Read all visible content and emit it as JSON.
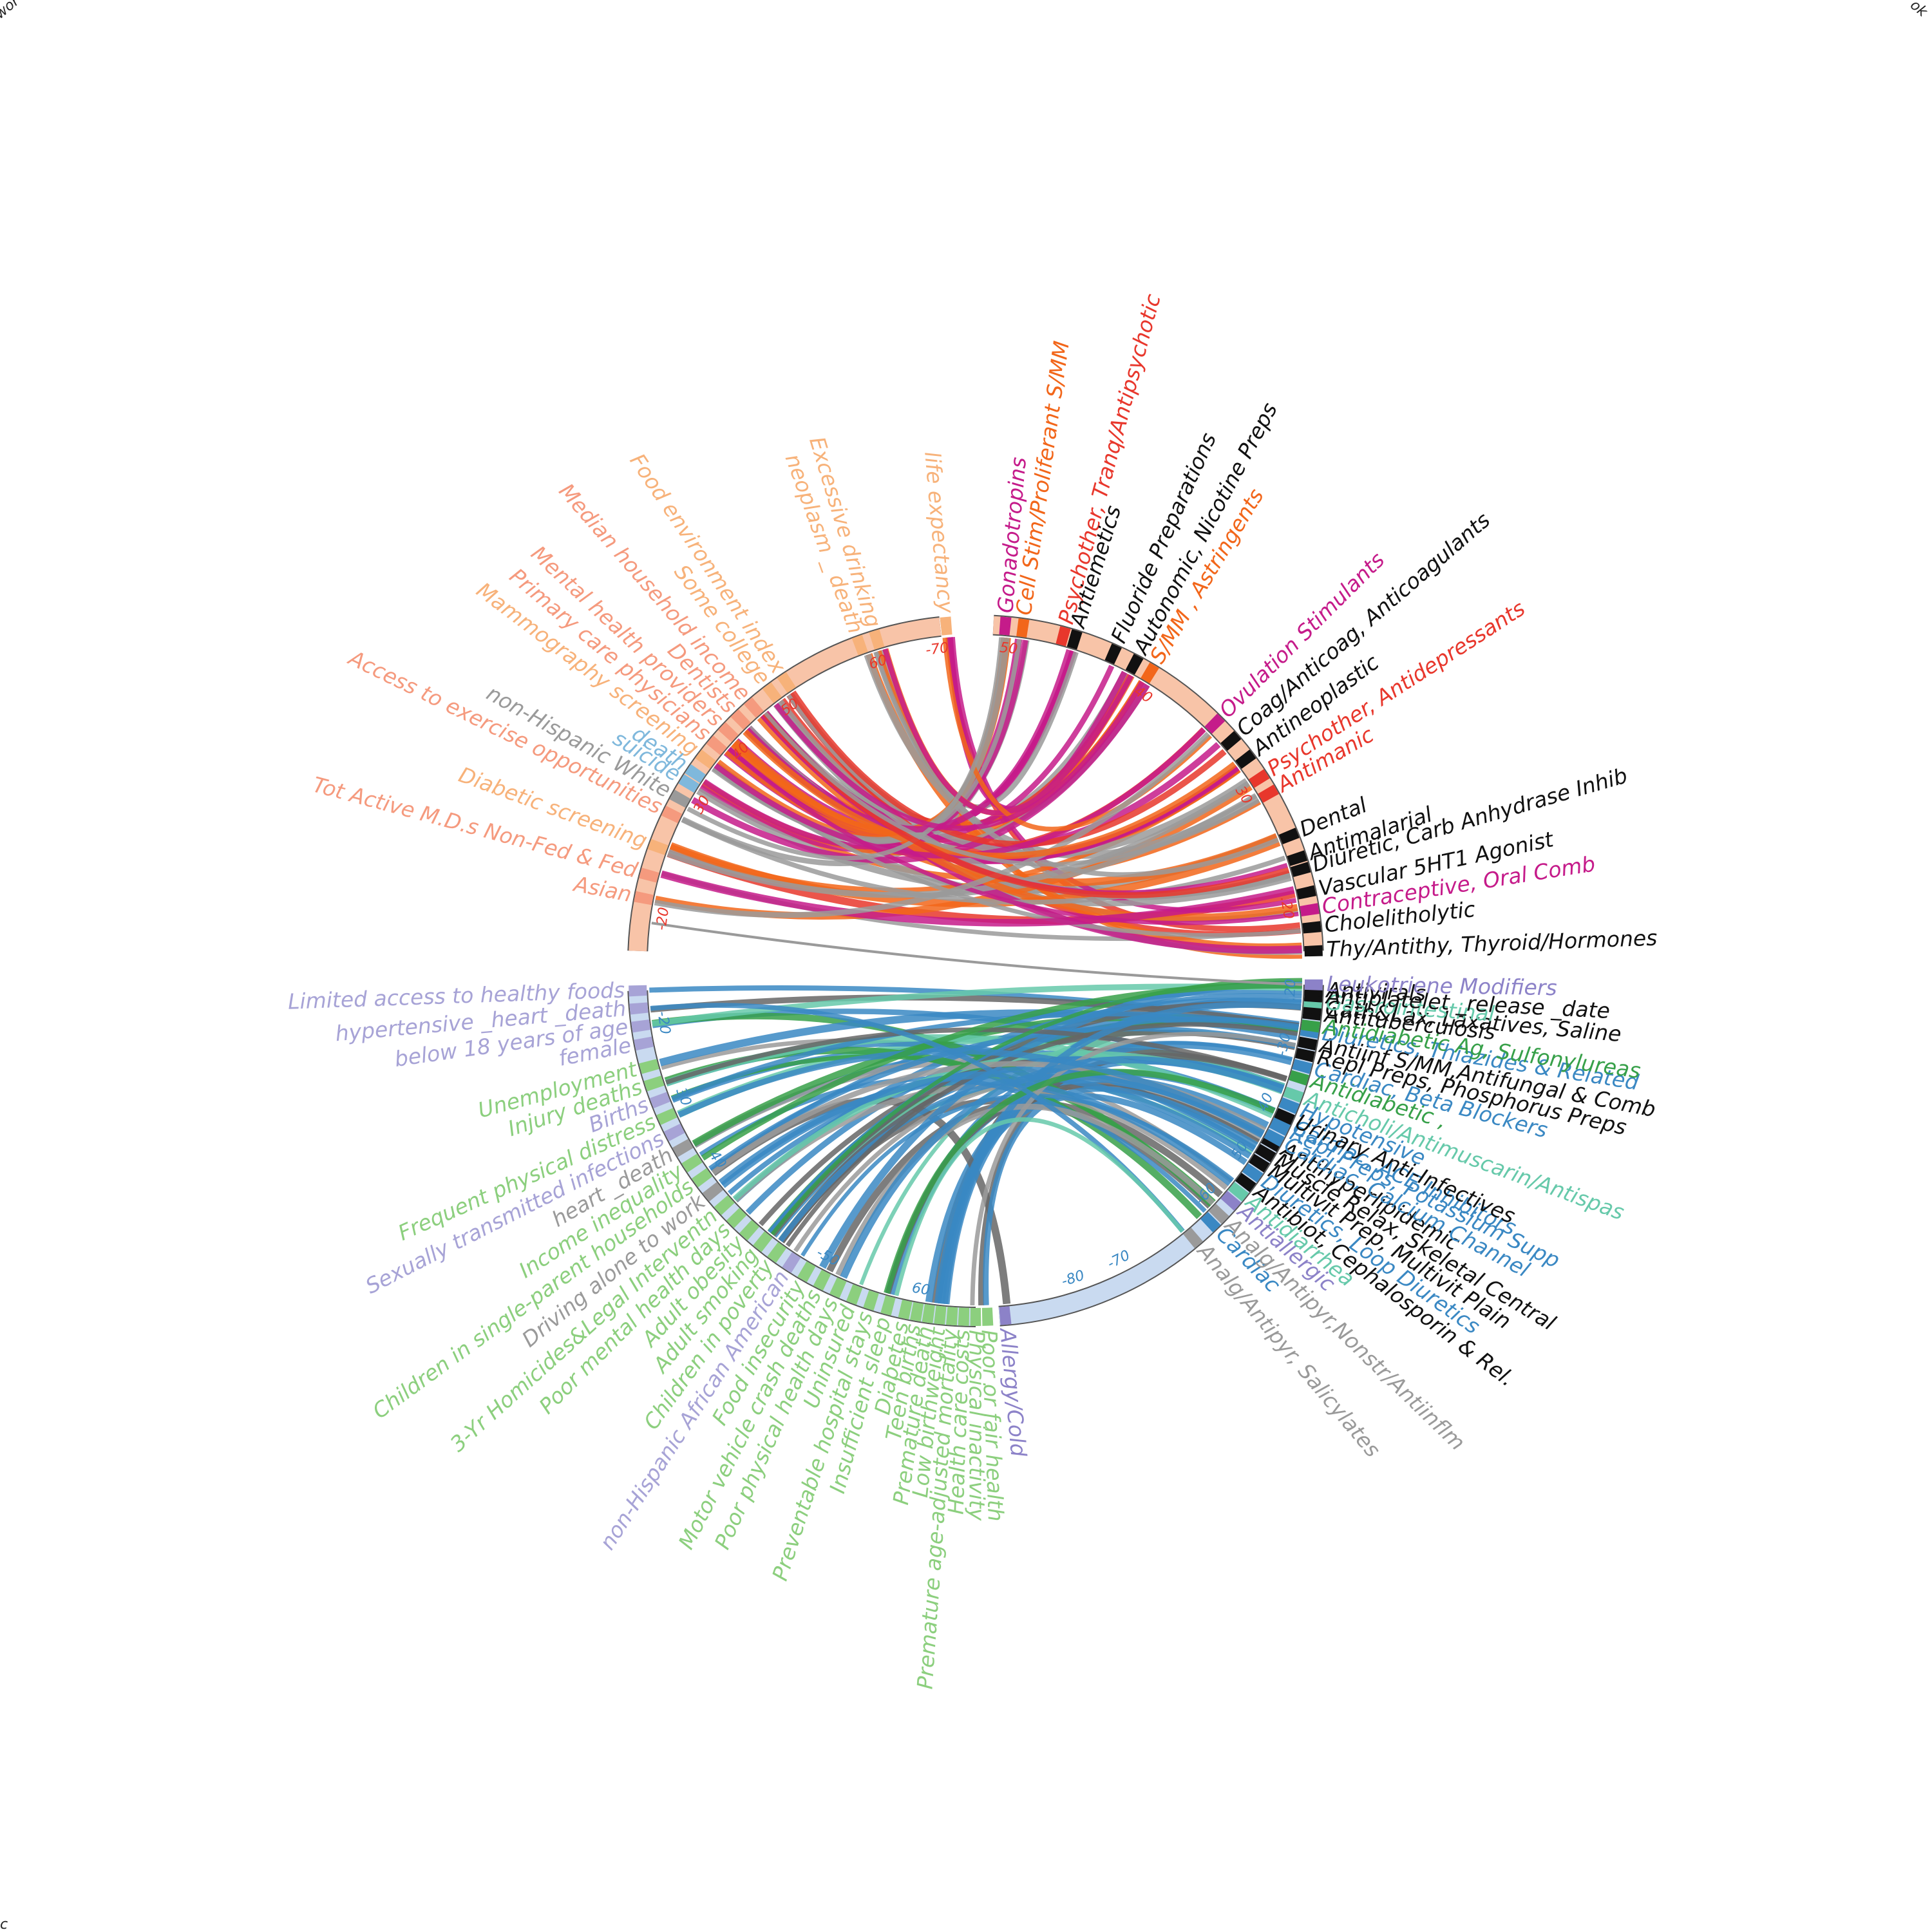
{
  "colors": {
    "orange": "#f28b30",
    "lightorange": "#f7b27a",
    "salmon": "#f59a7e",
    "skyblue": "#7fb8dc",
    "gray": "#9a9a9a",
    "magenta": "#c51b8a",
    "red": "#e8372c",
    "deeporange": "#f2661a",
    "black": "#111111",
    "purple": "#8c82c8",
    "lavender": "#a7a3d6",
    "green": "#8ccf7e",
    "blue": "#3a88c3",
    "teal": "#66c9aa",
    "dkgreen": "#37a049",
    "arcTop": "#f8c4a8",
    "arcBottom": "#c9daf0"
  },
  "corners": {
    "top_left": "wor",
    "top_right": "ok",
    "bottom_left": "c"
  },
  "chart_data": {
    "type": "chord",
    "description_note": "",
    "top": {
      "tick_labels": [
        "-20",
        "30",
        "40",
        "50",
        "60",
        "-70",
        "50",
        "40",
        "30",
        ".20"
      ],
      "left_labels": [
        {
          "text": "life expectancy",
          "color": "lightorange",
          "deg": 95
        },
        {
          "text": "Excessive drinking",
          "color": "lightorange",
          "deg": 107
        },
        {
          "text": "neoplasm _ death",
          "color": "lightorange",
          "deg": 110
        },
        {
          "text": "Food environment index",
          "color": "lightorange",
          "deg": 124
        },
        {
          "text": "Some college",
          "color": "lightorange",
          "deg": 127
        },
        {
          "text": "Median household income",
          "color": "salmon",
          "deg": 131
        },
        {
          "text": "Dentists",
          "color": "salmon",
          "deg": 134
        },
        {
          "text": "Mental health providers",
          "color": "salmon",
          "deg": 137
        },
        {
          "text": "Primary care physicians",
          "color": "salmon",
          "deg": 140
        },
        {
          "text": "Mammography screening",
          "color": "lightorange",
          "deg": 143
        },
        {
          "text": "death",
          "color": "skyblue",
          "deg": 146
        },
        {
          "text": "suicide",
          "color": "skyblue",
          "deg": 148
        },
        {
          "text": "non-Hispanic White",
          "color": "gray",
          "deg": 151
        },
        {
          "text": "Access to exercise opportunities",
          "color": "salmon",
          "deg": 154
        },
        {
          "text": "Diabetic screening",
          "color": "lightorange",
          "deg": 160
        },
        {
          "text": "Tot Active M.D.s Non-Fed & Fed",
          "color": "salmon",
          "deg": 165
        },
        {
          "text": "Asian",
          "color": "salmon",
          "deg": 169
        }
      ],
      "right_labels": [
        {
          "text": "Gonadotropins",
          "color": "magenta",
          "deg": 85
        },
        {
          "text": "Cell Stim/Proliferant S/MM",
          "color": "deeporange",
          "deg": 82
        },
        {
          "text": "Psychother, Tranq/Antipsychotic",
          "color": "red",
          "deg": 75
        },
        {
          "text": "Antiemetics",
          "color": "black",
          "deg": 73
        },
        {
          "text": "Fluoride Preparations",
          "color": "black",
          "deg": 66
        },
        {
          "text": "Autonomic, Nicotine Preps",
          "color": "black",
          "deg": 62
        },
        {
          "text": "S/MM , Astringents",
          "color": "deeporange",
          "deg": 59
        },
        {
          "text": "Ovulation Stimulants",
          "color": "magenta",
          "deg": 45
        },
        {
          "text": "Coag/Anticoag, Anticoagulants",
          "color": "black",
          "deg": 41
        },
        {
          "text": "Antineoplastic",
          "color": "black",
          "deg": 37
        },
        {
          "text": "Psychother, Antidepressants",
          "color": "red",
          "deg": 33
        },
        {
          "text": "Antimanic",
          "color": "red",
          "deg": 30
        },
        {
          "text": "Dental",
          "color": "black",
          "deg": 22
        },
        {
          "text": "Antimalarial",
          "color": "black",
          "deg": 18
        },
        {
          "text": "Diuretic, Carb Anhydrase Inhib",
          "color": "black",
          "deg": 16
        },
        {
          "text": "Vascular 5HT1 Agonist",
          "color": "black",
          "deg": 12
        },
        {
          "text": "Contraceptive, Oral Comb",
          "color": "magenta",
          "deg": 9
        },
        {
          "text": "Cholelitholytic",
          "color": "black",
          "deg": 6
        },
        {
          "text": "Thy/Antithy, Thyroid/Hormones",
          "color": "black",
          "deg": 2
        }
      ]
    },
    "bottom": {
      "tick_labels": [
        "-20",
        "30",
        "40",
        "-50",
        "60",
        "-70",
        "-80",
        ".20",
        "-30",
        "40",
        "50",
        "-60"
      ],
      "left_labels": [
        {
          "text": "Limited access to healthy foods",
          "color": "lavender",
          "deg": -178
        },
        {
          "text": "hypertensive _heart _death",
          "color": "lavender",
          "deg": -175
        },
        {
          "text": "below 18 years of age",
          "color": "lavender",
          "deg": -172
        },
        {
          "text": "female",
          "color": "lavender",
          "deg": -169
        },
        {
          "text": "Unemployment",
          "color": "green",
          "deg": -165
        },
        {
          "text": "Injury deaths",
          "color": "green",
          "deg": -162
        },
        {
          "text": "Births",
          "color": "lavender",
          "deg": -159
        },
        {
          "text": "Frequent physical distress",
          "color": "green",
          "deg": -156
        },
        {
          "text": "Sexually transmitted infections",
          "color": "lavender",
          "deg": -153
        },
        {
          "text": "heart _death",
          "color": "gray",
          "deg": -150
        },
        {
          "text": "Income inequality",
          "color": "green",
          "deg": -147
        },
        {
          "text": "Children in single-parent households",
          "color": "green",
          "deg": -144
        },
        {
          "text": "Driving alone to work",
          "color": "gray",
          "deg": -141
        },
        {
          "text": "3-Yr Homicides&Legal Interventn",
          "color": "green",
          "deg": -138
        },
        {
          "text": "Poor mental health days",
          "color": "green",
          "deg": -135
        },
        {
          "text": "Adult obesity",
          "color": "green",
          "deg": -132
        },
        {
          "text": "Adult smoking",
          "color": "green",
          "deg": -129
        },
        {
          "text": "Children in poverty",
          "color": "green",
          "deg": -126
        },
        {
          "text": "non-Hispanic African American",
          "color": "lavender",
          "deg": -123
        },
        {
          "text": "Food insecurity",
          "color": "green",
          "deg": -120
        },
        {
          "text": "Motor vehicle crash deaths",
          "color": "green",
          "deg": -117
        },
        {
          "text": "Poor physical health days",
          "color": "green",
          "deg": -114
        },
        {
          "text": "Uninsured",
          "color": "green",
          "deg": -111
        },
        {
          "text": "Preventable hospital stays",
          "color": "green",
          "deg": -108
        },
        {
          "text": "Insufficient sleep",
          "color": "green",
          "deg": -105
        },
        {
          "text": "Diabetes",
          "color": "green",
          "deg": -102
        },
        {
          "text": "Teen births",
          "color": "green",
          "deg": -100
        },
        {
          "text": "Premature death",
          "color": "green",
          "deg": -98
        },
        {
          "text": "Low birthweight",
          "color": "green",
          "deg": -96
        },
        {
          "text": "Premature age-adjusted mortality",
          "color": "green",
          "deg": -94
        },
        {
          "text": "Health care costs",
          "color": "green",
          "deg": -92
        },
        {
          "text": "Physical inactivity",
          "color": "green",
          "deg": -90
        },
        {
          "text": "Poor or fair health",
          "color": "green",
          "deg": -88
        }
      ],
      "right_labels": [
        {
          "text": "Allergy/Cold",
          "color": "purple",
          "deg": -85
        },
        {
          "text": "Analg/Antipyr, Salicylates",
          "color": "gray",
          "deg": -50
        },
        {
          "text": "Cardiac",
          "color": "blue",
          "deg": -46
        },
        {
          "text": "Analg/Antipyr,Nonstr/Antiinflm",
          "color": "gray",
          "deg": -44
        },
        {
          "text": "Antiallergic",
          "color": "purple",
          "deg": -41
        },
        {
          "text": "Antidiarrhea",
          "color": "teal",
          "deg": -39
        },
        {
          "text": "Antibiot, Cephalosporin & Rel.",
          "color": "black",
          "deg": -37
        },
        {
          "text": "Diuretics, Loop Diuretics",
          "color": "blue",
          "deg": -35
        },
        {
          "text": "Multivit Prep, Multivit Plain",
          "color": "black",
          "deg": -33
        },
        {
          "text": "Muscle Relax, Skeletal Central",
          "color": "black",
          "deg": -31
        },
        {
          "text": "Antihyperlipidemic",
          "color": "black",
          "deg": -29
        },
        {
          "text": "Cardiac, Calcium Channel",
          "color": "blue",
          "deg": -28
        },
        {
          "text": "Repl Preps, Potassium Supp",
          "color": "blue",
          "deg": -26
        },
        {
          "text": "Cardiac, ACE Inhibitors",
          "color": "blue",
          "deg": -25
        },
        {
          "text": "Urinary Anti-Infectives",
          "color": "black",
          "deg": -24
        },
        {
          "text": "Hypotensive",
          "color": "blue",
          "deg": -22
        },
        {
          "text": "Anticholi/Antimuscarin/Antispas",
          "color": "teal",
          "deg": -20
        },
        {
          "text": "Antidiabetic ,",
          "color": "dkgreen",
          "deg": -17
        },
        {
          "text": "Cardiac, Beta Blockers",
          "color": "blue",
          "deg": -15
        },
        {
          "text": "Repl Preps, Phosphorus Preps",
          "color": "black",
          "deg": -13
        },
        {
          "text": "Antiinf S/MM,Antifungal & Comb",
          "color": "black",
          "deg": -11
        },
        {
          "text": "Diuretics, Thiazides & Related",
          "color": "blue",
          "deg": -9
        },
        {
          "text": "Antidiabetic Ag, Sulfonylureas",
          "color": "dkgreen",
          "deg": -8
        },
        {
          "text": "Antituberculosis",
          "color": "black",
          "deg": -6
        },
        {
          "text": "Cath&Lax, Laxatives, Saline",
          "color": "black",
          "deg": -5
        },
        {
          "text": "Gastrointestinal",
          "color": "teal",
          "deg": -4
        },
        {
          "text": "Antiplatelet _release _date",
          "color": "black",
          "deg": -3
        },
        {
          "text": "Antivirals",
          "color": "black",
          "deg": -2
        },
        {
          "text": "Leukotriene Modifiers",
          "color": "purple",
          "deg": -1
        }
      ]
    }
  }
}
